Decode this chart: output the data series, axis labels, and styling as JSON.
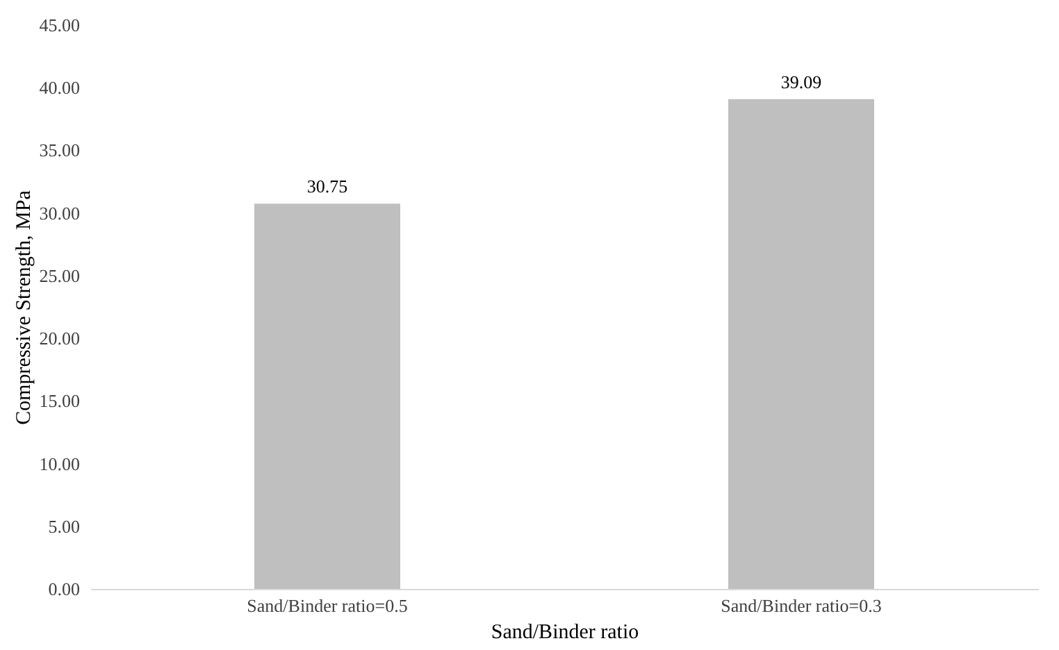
{
  "chart_data": {
    "type": "bar",
    "xlabel": "Sand/Binder ratio",
    "ylabel": "Compressive Strength, MPa",
    "categories": [
      "Sand/Binder ratio=0.5",
      "Sand/Binder ratio=0.3"
    ],
    "values": [
      30.75,
      39.09
    ],
    "color": "#bfbfbf",
    "data_labels": true,
    "grid": false,
    "ylim": [
      0,
      45
    ],
    "yticks": [
      {
        "value": 0,
        "label": "0.00"
      },
      {
        "value": 5,
        "label": "5.00"
      },
      {
        "value": 10,
        "label": "10.00"
      },
      {
        "value": 15,
        "label": "15.00"
      },
      {
        "value": 20,
        "label": "20.00"
      },
      {
        "value": 25,
        "label": "25.00"
      },
      {
        "value": 30,
        "label": "30.00"
      },
      {
        "value": 35,
        "label": "35.00"
      },
      {
        "value": 40,
        "label": "40.00"
      },
      {
        "value": 45,
        "label": "45.00"
      }
    ]
  }
}
